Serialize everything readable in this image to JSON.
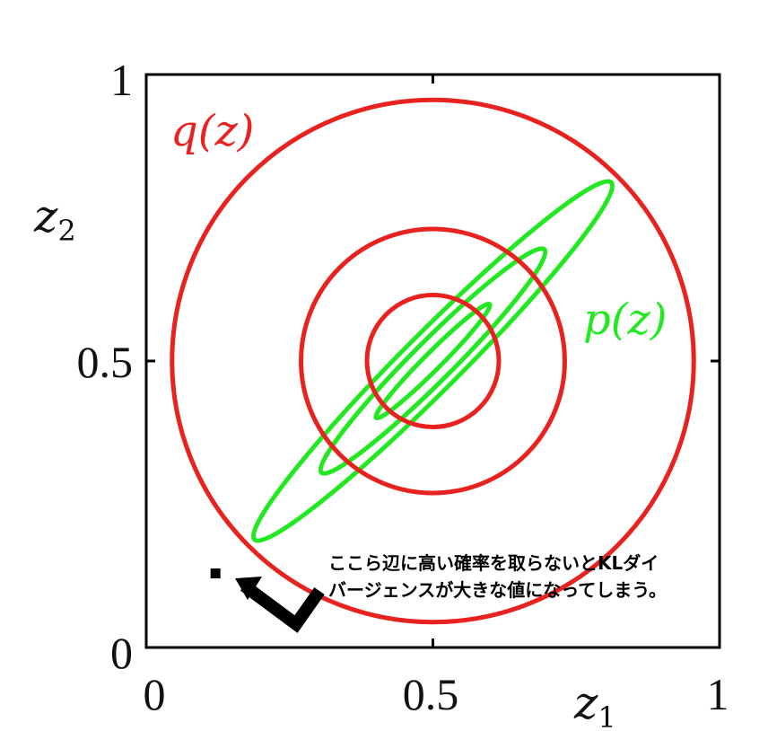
{
  "axes": {
    "x_ticks": [
      "0",
      "0.5",
      "1"
    ],
    "y_ticks": [
      "0",
      "0.5",
      "1"
    ],
    "x_label": "z",
    "x_label_sub": "1",
    "y_label": "z",
    "y_label_sub": "2",
    "xlim": [
      0,
      1
    ],
    "ylim": [
      0,
      1
    ]
  },
  "labels": {
    "q": "q(z)",
    "p": "p(z)"
  },
  "colors": {
    "q": "#e8231f",
    "p": "#22e822",
    "frame": "#000000"
  },
  "annotation": {
    "line1": "ここら辺に高い確率を取らないとKLダイ",
    "line2": "バージェンスが大きな値になってしまう。",
    "marker_point": [
      0.12,
      0.13
    ]
  },
  "q_contours": {
    "center": [
      0.5,
      0.5
    ],
    "radii": [
      0.23,
      0.46,
      0.91
    ]
  },
  "p_contours": {
    "center": [
      0.5,
      0.5
    ],
    "angle_deg": 45,
    "half_lengths": [
      0.28,
      0.55,
      0.88
    ],
    "half_widths": [
      0.03,
      0.07,
      0.1
    ]
  }
}
